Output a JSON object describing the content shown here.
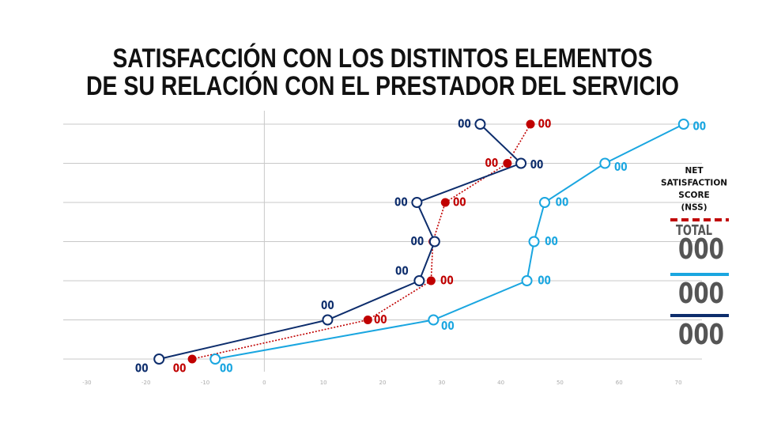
{
  "chart_data": {
    "type": "line",
    "orientation": "horizontal",
    "title": [
      "SATISFACCIÓN CON LOS DISTINTOS ELEMENTOS",
      "DE SU RELACIÓN CON EL PRESTADOR DEL SERVICIO"
    ],
    "categories": [
      null,
      null,
      null,
      null,
      null,
      null,
      null
    ],
    "xlim": [
      -34,
      74
    ],
    "xticks": [
      -30,
      -20,
      -10,
      0,
      10,
      20,
      30,
      40,
      50,
      60,
      70
    ],
    "grid": true,
    "series": [
      {
        "color": "#c00000",
        "style": "dotted",
        "marker": "filled",
        "values": [
          45,
          41.1,
          30.6,
          28.5,
          28.2,
          17.5,
          -12.2
        ],
        "point_labels": [
          "00",
          "00",
          "00",
          null,
          "00",
          "00",
          "00"
        ]
      },
      {
        "color": "#0d2d6c",
        "style": "solid",
        "marker": "open",
        "values": [
          36.5,
          43.4,
          25.8,
          28.8,
          26.2,
          10.7,
          -17.8
        ],
        "point_labels": [
          "00",
          "00",
          "00",
          "00",
          "00",
          "00",
          "00"
        ]
      },
      {
        "color": "#1aa6e0",
        "style": "solid",
        "marker": "open",
        "values": [
          70.9,
          57.6,
          47.4,
          45.6,
          44.4,
          28.6,
          -8.3
        ],
        "point_labels": [
          "00",
          "00",
          "00",
          "00",
          "00",
          "00",
          "00"
        ]
      }
    ],
    "side_panel": {
      "heading": [
        "NET",
        "SATISFACTION",
        "SCORE",
        "(NSS)"
      ],
      "items": [
        {
          "color": "#c00000",
          "line": "dashed",
          "label": "TOTAL",
          "score": "000"
        },
        {
          "color": "#1aa6e0",
          "line": "solid",
          "score": "000"
        },
        {
          "color": "#0d2d6c",
          "line": "solid",
          "score": "000"
        }
      ]
    }
  }
}
